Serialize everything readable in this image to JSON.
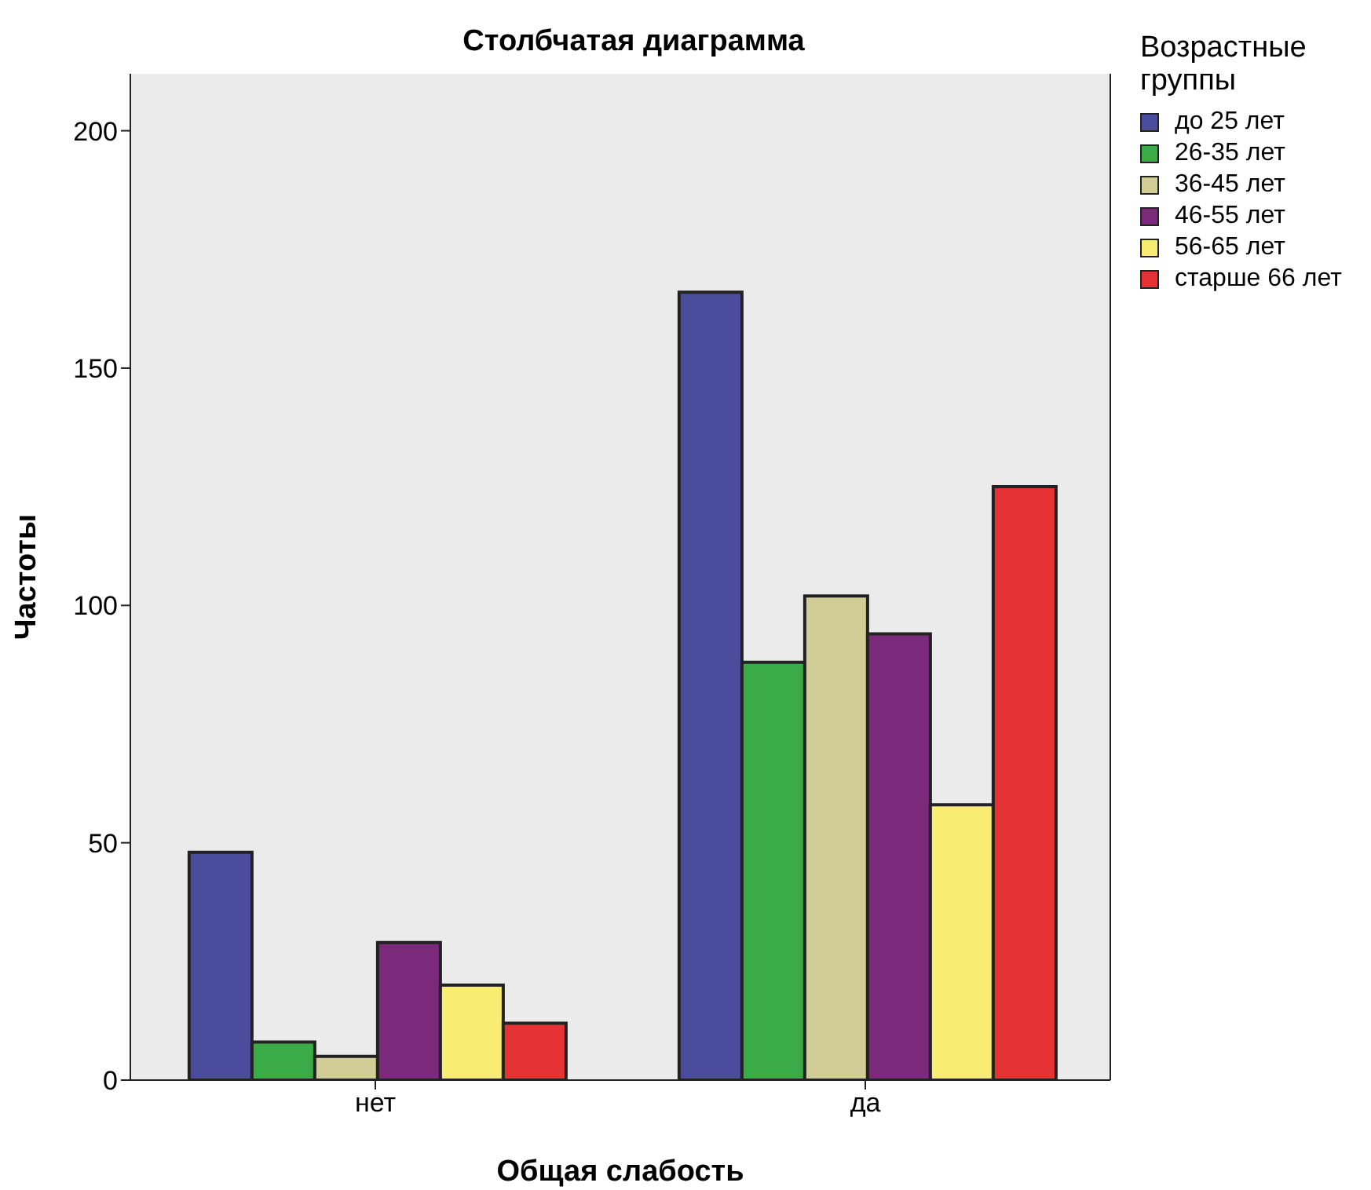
{
  "chart_data": {
    "type": "bar",
    "title": "Столбчатая диаграмма",
    "xlabel": "Общая слабость",
    "ylabel": "Частоты",
    "categories": [
      "нет",
      "да"
    ],
    "series": [
      {
        "name": "до 25 лет",
        "color": "#4a4c9c",
        "values": [
          48,
          166
        ]
      },
      {
        "name": "26-35 лет",
        "color": "#3aab46",
        "values": [
          8,
          88
        ]
      },
      {
        "name": "36-45 лет",
        "color": "#d2cd96",
        "values": [
          5,
          102
        ]
      },
      {
        "name": "46-55 лет",
        "color": "#7b2a7b",
        "values": [
          29,
          94
        ]
      },
      {
        "name": "56-65 лет",
        "color": "#f8ec72",
        "values": [
          20,
          58
        ]
      },
      {
        "name": "старше 66 лет",
        "color": "#e53335",
        "values": [
          12,
          125
        ]
      }
    ],
    "legend_title": "Возрастные группы",
    "legend": "right",
    "ylim": [
      0,
      212
    ],
    "yticks": [
      0,
      50,
      100,
      150,
      200
    ]
  }
}
